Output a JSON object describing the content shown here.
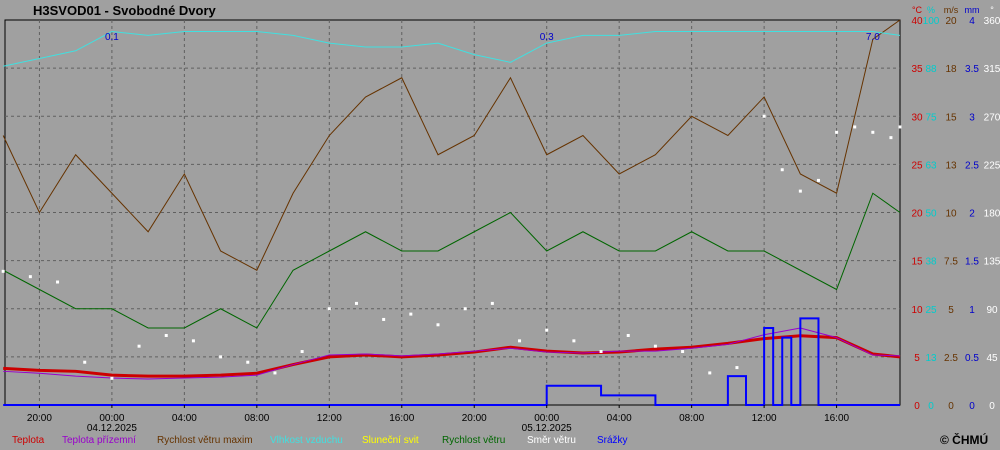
{
  "chart_data": {
    "type": "line",
    "title": "H3SVOD01 - Svobodné Dvory",
    "x_ticks": [
      {
        "label": "20:00"
      },
      {
        "label": "00:00",
        "date": "04.12.2025"
      },
      {
        "label": "04:00"
      },
      {
        "label": "08:00"
      },
      {
        "label": "12:00"
      },
      {
        "label": "16:00"
      },
      {
        "label": "20:00"
      },
      {
        "label": "00:00",
        "date": "05.12.2025"
      },
      {
        "label": "04:00"
      },
      {
        "label": "08:00"
      },
      {
        "label": "12:00"
      },
      {
        "label": "16:00"
      }
    ],
    "x_range_hours": [
      -5.9,
      43.5
    ],
    "axes": [
      {
        "unit": "°C",
        "color": "#cc0000",
        "ticks": [
          "0",
          "5",
          "10",
          "15",
          "20",
          "25",
          "30",
          "35",
          "40"
        ],
        "range": [
          0,
          40
        ]
      },
      {
        "unit": "%",
        "color": "#00cccc",
        "ticks": [
          "0",
          "13",
          "25",
          "38",
          "50",
          "63",
          "75",
          "88",
          "100"
        ],
        "range": [
          0,
          100
        ]
      },
      {
        "unit": "m/s",
        "color": "#663300",
        "ticks": [
          "0",
          "2.5",
          "5",
          "7.5",
          "10",
          "13",
          "15",
          "18",
          "20"
        ],
        "range": [
          0,
          20
        ]
      },
      {
        "unit": "mm",
        "color": "#0000cc",
        "ticks": [
          "0",
          "0.5",
          "1",
          "1.5",
          "2",
          "2.5",
          "3",
          "3.5",
          "4"
        ],
        "range": [
          0,
          4
        ]
      },
      {
        "unit": "°",
        "color": "#ffffff",
        "ticks": [
          "0",
          "45",
          "90",
          "135",
          "180",
          "225",
          "270",
          "315",
          "360"
        ],
        "range": [
          0,
          360
        ]
      }
    ],
    "grid": true,
    "precip_annotations": [
      {
        "label": "0.1",
        "x": 0
      },
      {
        "label": "0.3",
        "x": 24
      },
      {
        "label": "7.0",
        "x": 42
      }
    ],
    "series": [
      {
        "name": "Teplota",
        "color": "#cc0000",
        "axis": 0,
        "x": [
          -6,
          -4,
          -2,
          0,
          2,
          4,
          6,
          8,
          10,
          12,
          14,
          16,
          18,
          20,
          22,
          24,
          26,
          28,
          30,
          32,
          34,
          36,
          38,
          40,
          42,
          43.5
        ],
        "y": [
          3.8,
          3.6,
          3.5,
          3.1,
          3.0,
          3.0,
          3.1,
          3.3,
          4.2,
          5.0,
          5.2,
          5.0,
          5.2,
          5.5,
          6.0,
          5.6,
          5.4,
          5.5,
          5.8,
          6.0,
          6.4,
          6.9,
          7.2,
          7.0,
          5.3,
          5.0
        ]
      },
      {
        "name": "Teplota přízemní",
        "color": "#9900cc",
        "axis": 0,
        "x": [
          -6,
          -4,
          -2,
          0,
          2,
          4,
          6,
          8,
          10,
          12,
          14,
          16,
          18,
          20,
          22,
          24,
          26,
          28,
          30,
          32,
          34,
          36,
          38,
          40,
          42,
          43.5
        ],
        "y": [
          3.5,
          3.3,
          3.0,
          2.8,
          2.7,
          2.8,
          2.9,
          3.1,
          4.2,
          5.2,
          5.3,
          5.1,
          5.3,
          5.6,
          5.9,
          5.5,
          5.4,
          5.6,
          5.6,
          5.9,
          6.3,
          7.3,
          8.0,
          7.0,
          5.2,
          5.1
        ]
      },
      {
        "name": "Rychlost větru maxim",
        "color": "#663300",
        "axis": 2,
        "x": [
          -6,
          -4,
          -2,
          0,
          2,
          4,
          6,
          8,
          10,
          12,
          14,
          16,
          18,
          20,
          22,
          24,
          26,
          28,
          30,
          32,
          34,
          36,
          38,
          40,
          42,
          43.5
        ],
        "y": [
          14,
          10,
          13,
          11,
          9,
          12,
          8,
          7,
          11,
          14,
          16,
          17,
          13,
          14,
          17,
          13,
          14,
          12,
          13,
          15,
          14,
          16,
          12,
          11,
          19,
          20
        ]
      },
      {
        "name": "Vlhkost vzduchu",
        "color": "#40e0e0",
        "axis": 1,
        "x": [
          -6,
          -4,
          -2,
          0,
          2,
          4,
          6,
          8,
          10,
          12,
          14,
          16,
          18,
          20,
          22,
          24,
          26,
          28,
          30,
          32,
          34,
          36,
          38,
          40,
          42,
          43.5
        ],
        "y": [
          88,
          90,
          92,
          97,
          96,
          97,
          97,
          97,
          96,
          94,
          93,
          93,
          94,
          91,
          89,
          94,
          96,
          96,
          97,
          97,
          97,
          97,
          97,
          97,
          97,
          96
        ]
      },
      {
        "name": "Sluneční svit",
        "color": "#ffff00",
        "axis": 2,
        "x": [],
        "y": []
      },
      {
        "name": "Rychlost větru",
        "color": "#006600",
        "axis": 2,
        "x": [
          -6,
          -4,
          -2,
          0,
          2,
          4,
          6,
          8,
          10,
          12,
          14,
          16,
          18,
          20,
          22,
          24,
          26,
          28,
          30,
          32,
          34,
          36,
          38,
          40,
          42,
          43.5
        ],
        "y": [
          7,
          6,
          5,
          5,
          4,
          4,
          5,
          4,
          7,
          8,
          9,
          8,
          8,
          9,
          10,
          8,
          9,
          8,
          8,
          9,
          8,
          8,
          7,
          6,
          11,
          10
        ]
      },
      {
        "name": "Směr větru",
        "color": "#ffffff",
        "axis": 4,
        "marker": "dot",
        "x": [
          -6,
          -4.5,
          -3,
          -1.5,
          0,
          1.5,
          3,
          4.5,
          6,
          7.5,
          9,
          10.5,
          12,
          13.5,
          15,
          16.5,
          18,
          19.5,
          21,
          22.5,
          24,
          25.5,
          27,
          28.5,
          30,
          31.5,
          33,
          34.5,
          36,
          37,
          38,
          39,
          40,
          41,
          42,
          43,
          43.5
        ],
        "y": [
          125,
          120,
          115,
          40,
          25,
          55,
          65,
          60,
          45,
          40,
          30,
          50,
          90,
          95,
          80,
          85,
          75,
          90,
          95,
          60,
          70,
          60,
          50,
          65,
          55,
          50,
          30,
          35,
          270,
          220,
          200,
          210,
          255,
          260,
          255,
          250,
          260
        ]
      },
      {
        "name": "Srážky",
        "color": "#0000ff",
        "axis": 3,
        "x": [
          -6,
          23.5,
          24,
          25,
          26,
          27,
          28,
          29,
          30,
          31,
          32,
          33,
          34,
          35,
          36,
          36.5,
          37,
          37.5,
          38,
          39,
          40,
          41,
          42,
          43.5
        ],
        "y": [
          0,
          0,
          0.2,
          0.2,
          0.2,
          0.1,
          0.1,
          0.1,
          0,
          0,
          0,
          0,
          0.3,
          0,
          0.8,
          0,
          0.7,
          0,
          0.9,
          0,
          0,
          0,
          0,
          0
        ]
      }
    ]
  },
  "copyright": "© ČHMÚ"
}
